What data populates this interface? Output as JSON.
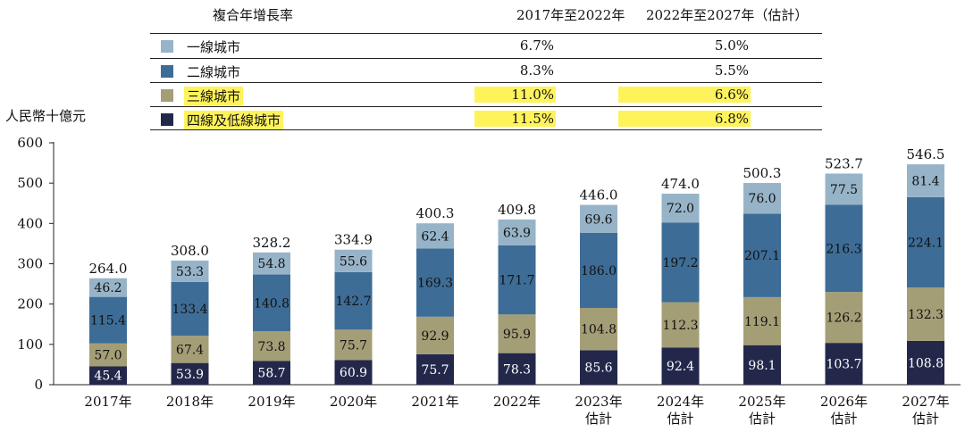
{
  "cagr_table": {
    "title": "複合年增長率",
    "col1_header": "2017年至2022年",
    "col2_header": "2022年至2027年（估計）",
    "rows": [
      {
        "label": "一線城市",
        "v1": "6.7%",
        "v2": "5.0%",
        "color": "#97b3c8",
        "highlight": false
      },
      {
        "label": "二線城市",
        "v1": "8.3%",
        "v2": "5.5%",
        "color": "#3d6d96",
        "highlight": false
      },
      {
        "label": "三線城市",
        "v1": "11.0%",
        "v2": "6.6%",
        "color": "#a49e77",
        "highlight": true
      },
      {
        "label": "四線及低線城市",
        "v1": "11.5%",
        "v2": "6.8%",
        "color": "#23284b",
        "highlight": true
      }
    ],
    "highlight_color": "#fff35c"
  },
  "chart_data": {
    "type": "bar",
    "stacked": true,
    "ylabel": "人民幣十億元",
    "ylim": [
      0,
      600
    ],
    "yticks": [
      0,
      100,
      200,
      300,
      400,
      500,
      600
    ],
    "categories": [
      "2017年",
      "2018年",
      "2019年",
      "2020年",
      "2021年",
      "2022年",
      "2023年\n估計",
      "2024年\n估計",
      "2025年\n估計",
      "2026年\n估計",
      "2027年\n估計"
    ],
    "series": [
      {
        "name": "四線及低線城市",
        "color": "#23284b",
        "label_color": "#ffffff",
        "values": [
          45.4,
          53.9,
          58.7,
          60.9,
          75.7,
          78.3,
          85.6,
          92.4,
          98.1,
          103.7,
          108.8
        ]
      },
      {
        "name": "三線城市",
        "color": "#a49e77",
        "label_color": "#111111",
        "values": [
          57.0,
          67.4,
          73.8,
          75.7,
          92.9,
          95.9,
          104.8,
          112.3,
          119.1,
          126.2,
          132.3
        ]
      },
      {
        "name": "二線城市",
        "color": "#3d6d96",
        "label_color": "#111111",
        "values": [
          115.4,
          133.4,
          140.8,
          142.7,
          169.3,
          171.7,
          186.0,
          197.2,
          207.1,
          216.3,
          224.1
        ]
      },
      {
        "name": "一線城市",
        "color": "#97b3c8",
        "label_color": "#111111",
        "values": [
          46.2,
          53.3,
          54.8,
          55.6,
          62.4,
          63.9,
          69.6,
          72.0,
          76.0,
          77.5,
          81.4
        ]
      }
    ],
    "totals": [
      264.0,
      308.0,
      328.2,
      334.9,
      400.3,
      409.8,
      446.0,
      474.0,
      500.3,
      523.7,
      546.5
    ],
    "grid": false,
    "legend": "top"
  }
}
